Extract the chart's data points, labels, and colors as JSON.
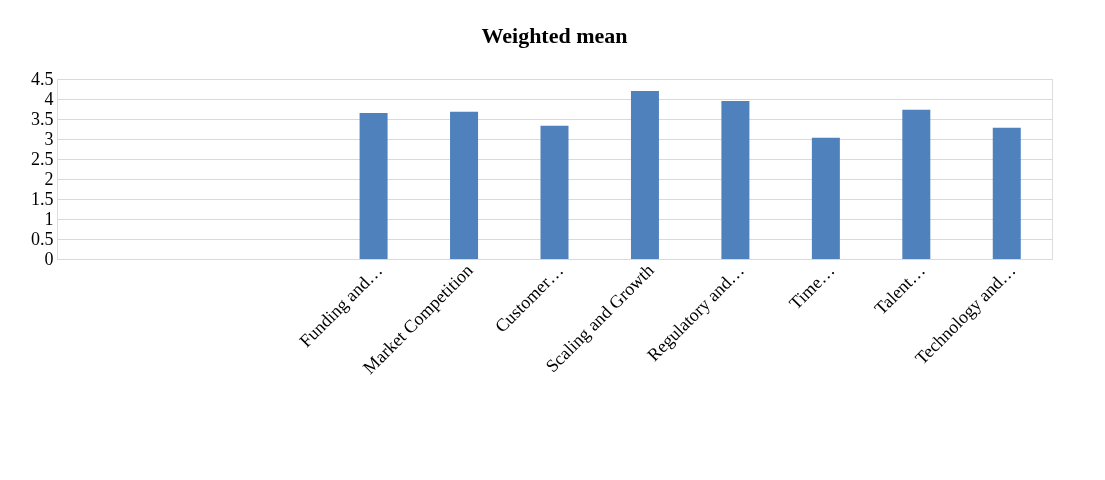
{
  "chart_data": {
    "type": "bar",
    "title": "Weighted mean",
    "categories": [
      null,
      null,
      null,
      "Funding and…",
      "Market Competition",
      "Customer…",
      "Scaling and Growth",
      "Regulatory and…",
      "Time…",
      "Talent…",
      "Technology and…"
    ],
    "values": [
      null,
      null,
      null,
      3.65,
      3.68,
      3.33,
      4.2,
      3.95,
      3.03,
      3.73,
      3.28
    ],
    "color": "#4f81bd",
    "ylim": [
      0,
      4.5
    ],
    "yticks": [
      0,
      0.5,
      1,
      1.5,
      2,
      2.5,
      3,
      3.5,
      4,
      4.5
    ],
    "grid": "y"
  }
}
